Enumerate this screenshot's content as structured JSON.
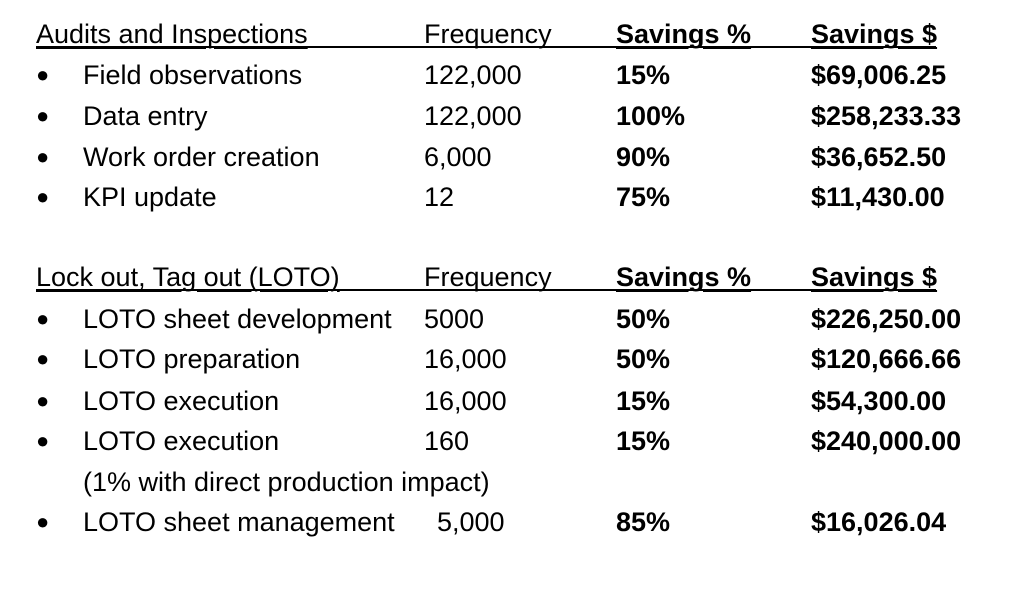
{
  "sections": [
    {
      "header": {
        "label": "Audits and Inspections",
        "frequency": "Frequency",
        "savings_pct": "Savings %",
        "savings_usd": "Savings $"
      },
      "rows": [
        {
          "item": "Field observations",
          "frequency": "122,000",
          "savings_pct": "15%",
          "savings_usd": "$69,006.25"
        },
        {
          "item": "Data entry",
          "frequency": "122,000",
          "savings_pct": "100%",
          "savings_usd": "$258,233.33"
        },
        {
          "item": "Work order creation",
          "frequency": "6,000",
          "savings_pct": "90%",
          "savings_usd": "$36,652.50"
        },
        {
          "item": "KPI update",
          "frequency": "12",
          "savings_pct": "75%",
          "savings_usd": "$11,430.00"
        }
      ]
    },
    {
      "header": {
        "label": "Lock out, Tag out (LOTO)",
        "frequency": "Frequency",
        "savings_pct": "Savings %",
        "savings_usd": "Savings $"
      },
      "rows": [
        {
          "item": "LOTO sheet development",
          "frequency": "5000",
          "savings_pct": "50%",
          "savings_usd": "$226,250.00"
        },
        {
          "item": "LOTO preparation",
          "frequency": "16,000",
          "savings_pct": "50%",
          "savings_usd": "$120,666.66"
        },
        {
          "item": "LOTO execution",
          "frequency": "16,000",
          "savings_pct": "15%",
          "savings_usd": "$54,300.00"
        },
        {
          "item": "LOTO execution",
          "frequency": "160",
          "savings_pct": "15%",
          "savings_usd": "$240,000.00"
        },
        {
          "item": "LOTO sheet management",
          "frequency": "5,000",
          "savings_pct": "85%",
          "savings_usd": "$16,026.04"
        }
      ],
      "note": "(1% with direct production impact)"
    }
  ],
  "bullet": "●"
}
